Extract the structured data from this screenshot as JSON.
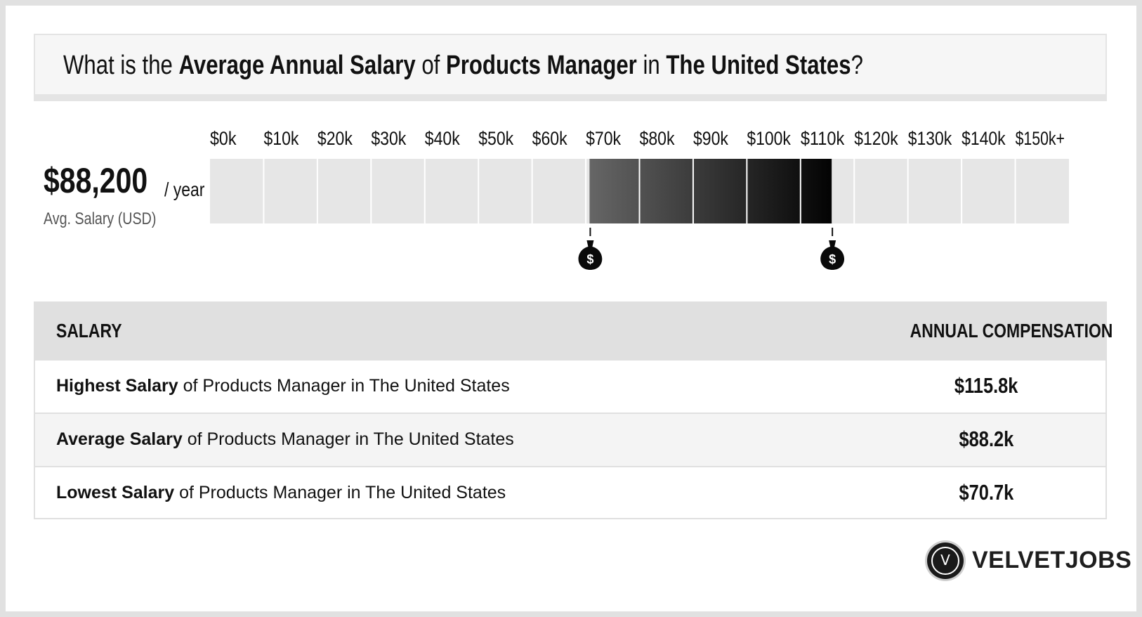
{
  "title": {
    "pre": "What is the ",
    "metric": "Average Annual Salary",
    "of": " of ",
    "job": "Products Manager",
    "in": " in ",
    "location": "The United States",
    "end": "?"
  },
  "average": {
    "amount": "$88,200",
    "unit": "/ year",
    "label": "Avg. Salary (USD)"
  },
  "chart_data": {
    "type": "bar",
    "tick_labels": [
      "$0k",
      "$10k",
      "$20k",
      "$30k",
      "$40k",
      "$50k",
      "$60k",
      "$70k",
      "$80k",
      "$90k",
      "$100k",
      "$110k",
      "$120k",
      "$130k",
      "$140k",
      "$150k+"
    ],
    "range": [
      0,
      160000
    ],
    "low": 70700,
    "high": 115800,
    "average": 88200,
    "colors": {
      "empty": "#e6e6e6",
      "low": "#666666",
      "high": "#030303"
    }
  },
  "table": {
    "header_left": "SALARY",
    "header_right": "ANNUAL COMPENSATION",
    "rows": [
      {
        "bold": "Highest Salary",
        "rest": " of Products Manager in The United States",
        "value": "$115.8k"
      },
      {
        "bold": "Average Salary",
        "rest": " of Products Manager in The United States",
        "value": "$88.2k"
      },
      {
        "bold": "Lowest Salary",
        "rest": " of Products Manager in The United States",
        "value": "$70.7k"
      }
    ]
  },
  "logo": {
    "letter": "V",
    "text": "VELVETJOBS"
  }
}
